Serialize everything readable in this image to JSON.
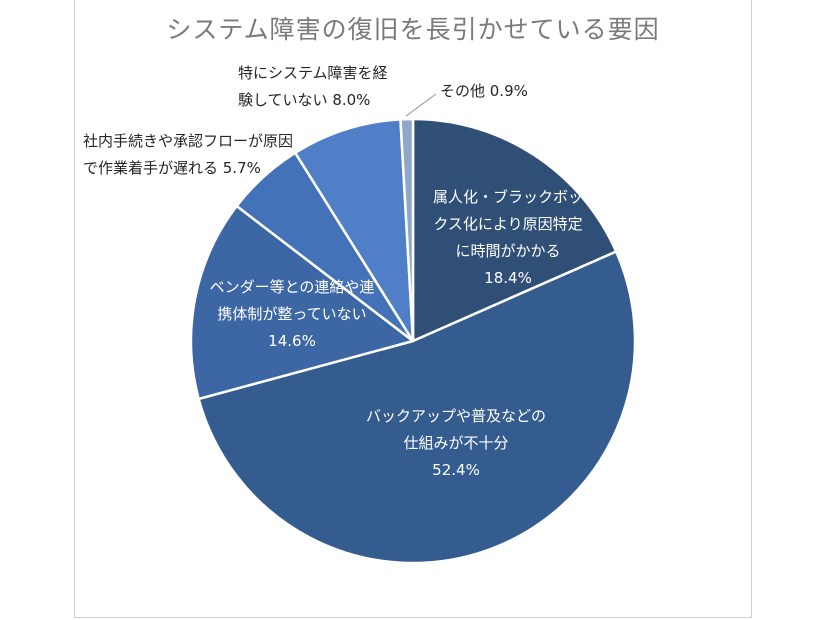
{
  "chart_data": {
    "type": "pie",
    "title": "システム障害の復旧を長引かせている要因",
    "start_angle_deg": 0,
    "direction": "clockwise",
    "slices": [
      {
        "label_lines": [
          "属人化・ブラックボッ",
          "クス化により原因特定",
          "に時間がかかる",
          "18.4%"
        ],
        "value": 18.4,
        "color": "#2f4f76"
      },
      {
        "label_lines": [
          "バックアップや普及などの",
          "仕組みが不十分",
          "52.4%"
        ],
        "value": 52.4,
        "color": "#355c8e"
      },
      {
        "label_lines": [
          "ベンダー等との連絡や連",
          "携体制が整っていない",
          "14.6%"
        ],
        "value": 14.6,
        "color": "#3d67a4"
      },
      {
        "label_lines": [
          "社内手続きや承認フローが原因",
          "で作業着手が遅れる 5.7%"
        ],
        "value": 5.7,
        "color": "#4472b8"
      },
      {
        "label_lines": [
          "特にシステム障害を経",
          "験していない 8.0%"
        ],
        "value": 8.0,
        "color": "#4f7fc6"
      },
      {
        "label_lines": [
          "その他 0.9%"
        ],
        "value": 0.9,
        "color": "#8fa7c8"
      }
    ],
    "legend": "none",
    "border_color": "#ffffff"
  }
}
